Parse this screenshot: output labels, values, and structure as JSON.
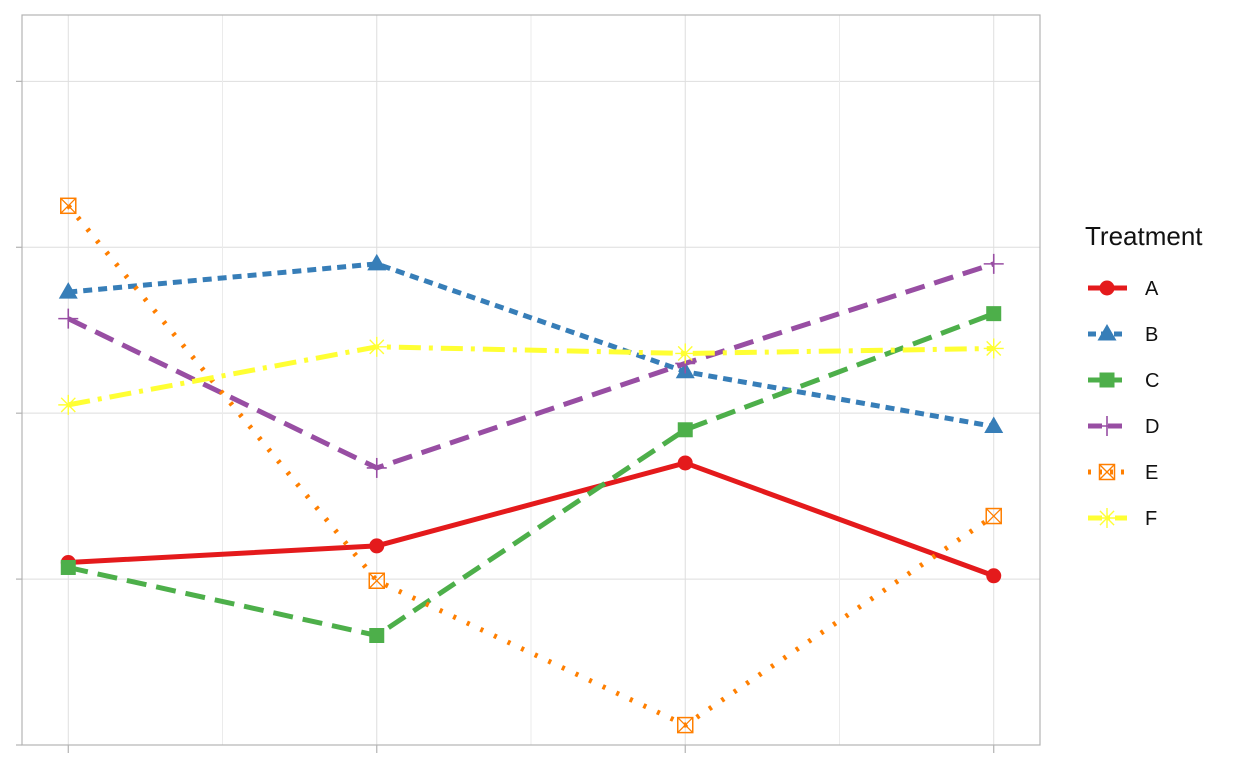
{
  "chart_data": {
    "type": "line",
    "x": [
      1,
      2,
      3,
      4
    ],
    "ylim": [
      0,
      4.4
    ],
    "xlim": [
      0.85,
      4.15
    ],
    "grid": true,
    "x_tick_labels_shown": false,
    "y_tick_labels_shown": false,
    "legend_position": "right",
    "legend_title": "Treatment",
    "series": [
      {
        "name": "A",
        "values": [
          1.1,
          1.2,
          1.7,
          1.02
        ],
        "color": "#e41a1c",
        "dash": "solid",
        "marker": "circle"
      },
      {
        "name": "B",
        "values": [
          2.73,
          2.9,
          2.25,
          1.92
        ],
        "color": "#377eb8",
        "dash": "short-dash",
        "marker": "triangle"
      },
      {
        "name": "C",
        "values": [
          1.07,
          0.66,
          1.9,
          2.6
        ],
        "color": "#4daf4a",
        "dash": "long-dash",
        "marker": "square"
      },
      {
        "name": "D",
        "values": [
          2.57,
          1.67,
          2.3,
          2.9
        ],
        "color": "#984ea3",
        "dash": "long-dash",
        "marker": "plus"
      },
      {
        "name": "E",
        "values": [
          3.25,
          0.99,
          0.12,
          1.38
        ],
        "color": "#ff7f00",
        "dash": "dotted",
        "marker": "square-cross"
      },
      {
        "name": "F",
        "values": [
          2.05,
          2.4,
          2.36,
          2.39
        ],
        "color": "#ffff33",
        "dash": "dash-dot",
        "marker": "asterisk"
      }
    ]
  }
}
